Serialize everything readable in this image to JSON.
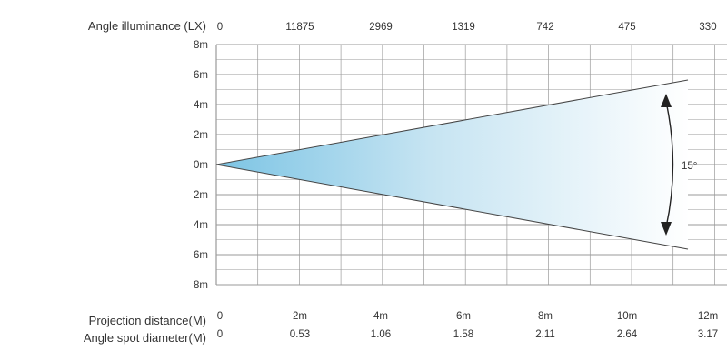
{
  "diagram": {
    "illuminance": {
      "label": "Angle illuminance (LX)",
      "values": [
        "0",
        "11875",
        "2969",
        "1319",
        "742",
        "475",
        "330"
      ]
    },
    "vertical_axis": {
      "labels": [
        "8m",
        "6m",
        "4m",
        "2m",
        "0m",
        "2m",
        "4m",
        "6m",
        "8m"
      ]
    },
    "projection_distance": {
      "label": "Projection distance(M)",
      "values": [
        "0",
        "2m",
        "4m",
        "6m",
        "8m",
        "10m",
        "12m"
      ]
    },
    "spot_diameter": {
      "label": "Angle spot diameter(M)",
      "values": [
        "0",
        "0.53",
        "1.06",
        "1.58",
        "2.11",
        "2.64",
        "3.17"
      ]
    },
    "beam_angle": "15°",
    "colors": {
      "beam_start": "#7cc4e4",
      "beam_end": "#ffffff",
      "grid": "#9a9a9a",
      "beam_edge": "#444444",
      "text": "#333333"
    }
  }
}
